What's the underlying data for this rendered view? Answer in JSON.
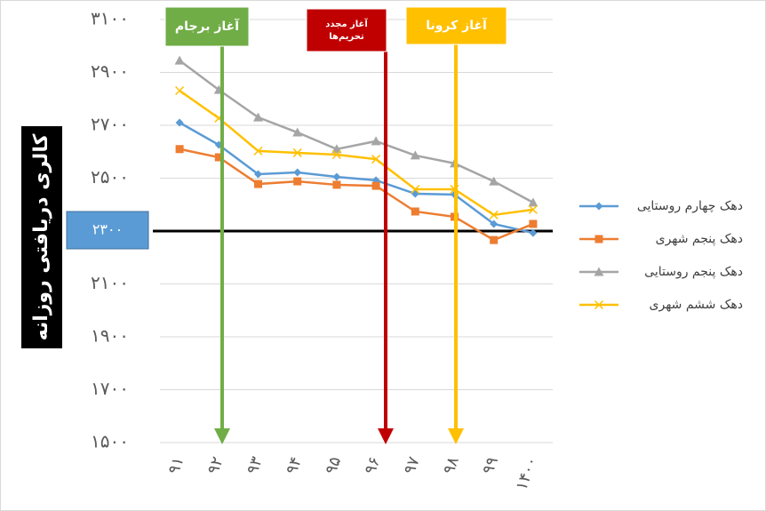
{
  "chart_data": {
    "type": "line",
    "y_axis_label": "کالری دریافتی روزانه",
    "categories": [
      "۹۱",
      "۹۲",
      "۹۳",
      "۹۴",
      "۹۵",
      "۹۶",
      "۹۷",
      "۹۸",
      "۹۹",
      "۱۴۰۰"
    ],
    "series": [
      {
        "name": "دهک چهارم روستایی",
        "color": "#5b9bd5",
        "marker": "diamond",
        "values": [
          2710,
          2626,
          2515,
          2522,
          2505,
          2492,
          2441,
          2438,
          2327,
          2293
        ]
      },
      {
        "name": "دهک پنجم شهری",
        "color": "#ed7d31",
        "marker": "square",
        "values": [
          2610,
          2579,
          2478,
          2488,
          2475,
          2471,
          2374,
          2354,
          2266,
          2327
        ]
      },
      {
        "name": "دهک پنجم روستایی",
        "color": "#a5a5a5",
        "marker": "triangle",
        "values": [
          2945,
          2834,
          2730,
          2673,
          2610,
          2640,
          2586,
          2556,
          2488,
          2408
        ]
      },
      {
        "name": "دهک ششم شهری",
        "color": "#ffc000",
        "marker": "x",
        "values": [
          2831,
          2727,
          2603,
          2596,
          2589,
          2572,
          2458,
          2458,
          2361,
          2381
        ]
      }
    ],
    "ylim": [
      1500,
      3100
    ],
    "yticks": [
      {
        "value": 1500,
        "label": "۱۵۰۰"
      },
      {
        "value": 1700,
        "label": "۱۷۰۰"
      },
      {
        "value": 1900,
        "label": "۱۹۰۰"
      },
      {
        "value": 2100,
        "label": "۲۱۰۰"
      },
      {
        "value": 2300,
        "label": "۲۳۰۰"
      },
      {
        "value": 2500,
        "label": "۲۵۰۰"
      },
      {
        "value": 2700,
        "label": "۲۷۰۰"
      },
      {
        "value": 2900,
        "label": "۲۹۰۰"
      },
      {
        "value": 3100,
        "label": "۳۱۰۰"
      }
    ],
    "grid": true,
    "reference_line": {
      "value": 2300,
      "label": "۲۳۰۰",
      "color": "#000000"
    },
    "annotations": [
      {
        "lines": [
          "آغاز برجام"
        ],
        "color": "#70ad47"
      },
      {
        "lines": [
          "آغاز مجدد",
          "تحریم‌ها"
        ],
        "color": "#c00000"
      },
      {
        "lines": [
          "آغاز کرونا"
        ],
        "color": "#ffc000"
      }
    ],
    "legend": "right"
  }
}
